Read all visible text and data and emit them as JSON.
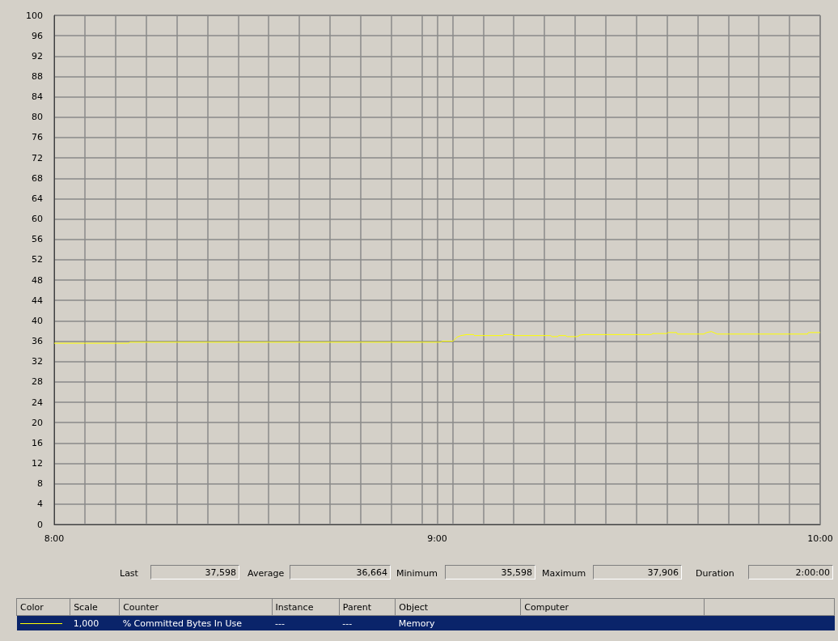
{
  "chart_data": {
    "type": "line",
    "line_style": "solid",
    "marker": "none",
    "grid": true,
    "legend": "bottom",
    "x": [
      8,
      8.195,
      8.197,
      9.01,
      9.012,
      9.041,
      9.052,
      9.062,
      9.077,
      9.095,
      9.097,
      9.172,
      9.174,
      9.197,
      9.199,
      9.296,
      9.3,
      9.315,
      9.317,
      9.335,
      9.34,
      9.366,
      9.373,
      9.383,
      9.559,
      9.563,
      9.6,
      9.602,
      9.625,
      9.627,
      9.696,
      9.704,
      9.716,
      9.731,
      9.967,
      9.969,
      10
    ],
    "series": [
      {
        "name": "% Committed Bytes In Use",
        "color": "#ffff00",
        "values": [
          35.6,
          35.6,
          35.8,
          35.8,
          36.0,
          36.0,
          36.8,
          37.1,
          37.3,
          37.3,
          37.1,
          37.1,
          37.3,
          37.3,
          37.1,
          37.1,
          36.9,
          36.9,
          37.1,
          37.1,
          36.9,
          36.9,
          37.2,
          37.3,
          37.3,
          37.5,
          37.5,
          37.7,
          37.7,
          37.4,
          37.4,
          37.7,
          37.9,
          37.4,
          37.4,
          37.7,
          37.7
        ]
      }
    ],
    "xlim": [
      8,
      10
    ],
    "xticks": [
      {
        "value": 8,
        "label": "8:00"
      },
      {
        "value": 8.08,
        "label": null
      },
      {
        "value": 8.16,
        "label": null
      },
      {
        "value": 8.24,
        "label": null
      },
      {
        "value": 8.32,
        "label": null
      },
      {
        "value": 8.4,
        "label": null
      },
      {
        "value": 8.48,
        "label": null
      },
      {
        "value": 8.56,
        "label": null
      },
      {
        "value": 8.64,
        "label": null
      },
      {
        "value": 8.72,
        "label": null
      },
      {
        "value": 8.8,
        "label": null
      },
      {
        "value": 8.88,
        "label": null
      },
      {
        "value": 8.96,
        "label": null
      },
      {
        "value": 9,
        "label": "9:00"
      },
      {
        "value": 9.04,
        "label": null
      },
      {
        "value": 9.12,
        "label": null
      },
      {
        "value": 9.2,
        "label": null
      },
      {
        "value": 9.28,
        "label": null
      },
      {
        "value": 9.36,
        "label": null
      },
      {
        "value": 9.44,
        "label": null
      },
      {
        "value": 9.52,
        "label": null
      },
      {
        "value": 9.6,
        "label": null
      },
      {
        "value": 9.68,
        "label": null
      },
      {
        "value": 9.76,
        "label": null
      },
      {
        "value": 9.84,
        "label": null
      },
      {
        "value": 9.92,
        "label": null
      },
      {
        "value": 10,
        "label": "10:00"
      }
    ],
    "ylim": [
      0,
      100
    ],
    "yticks": [
      0,
      4,
      8,
      12,
      16,
      20,
      24,
      28,
      32,
      36,
      40,
      44,
      48,
      52,
      56,
      60,
      64,
      68,
      72,
      76,
      80,
      84,
      88,
      92,
      96,
      100
    ],
    "annotations": [
      "Last",
      "37,598",
      "Average",
      "36,664",
      "Minimum",
      "35,598",
      "Maximum",
      "37,906",
      "Duration",
      "2:00:00",
      "Color",
      "Scale",
      "Counter",
      "Instance",
      "Parent",
      "Object",
      "Computer",
      "1,000",
      "---",
      "---",
      "Memory"
    ]
  }
}
